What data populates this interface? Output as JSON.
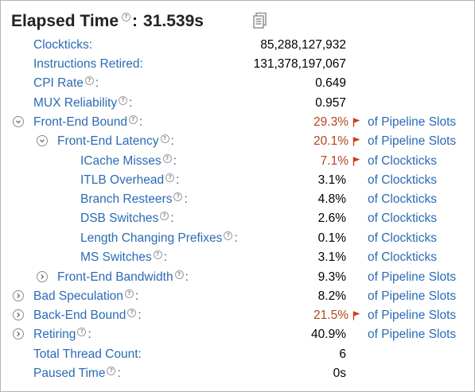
{
  "header": {
    "title": "Elapsed Time",
    "colon": ":",
    "value": "31.539s",
    "help_glyph": "?"
  },
  "metrics": {
    "clockticks": {
      "label": "Clockticks:",
      "value": "85,288,127,932"
    },
    "instructions_retired": {
      "label": "Instructions Retired:",
      "value": "131,378,197,067"
    },
    "cpi_rate": {
      "label": "CPI Rate",
      "value": "0.649"
    },
    "mux_reliability": {
      "label": "MUX Reliability",
      "value": "0.957"
    },
    "front_end_bound": {
      "label": "Front-End Bound",
      "value": "29.3%",
      "unit": "of Pipeline Slots"
    },
    "front_end_latency": {
      "label": "Front-End Latency",
      "value": "20.1%",
      "unit": "of Pipeline Slots"
    },
    "icache_misses": {
      "label": "ICache Misses",
      "value": "7.1%",
      "unit": "of Clockticks"
    },
    "itlb_overhead": {
      "label": "ITLB Overhead",
      "value": "3.1%",
      "unit": "of Clockticks"
    },
    "branch_resteers": {
      "label": "Branch Resteers",
      "value": "4.8%",
      "unit": "of Clockticks"
    },
    "dsb_switches": {
      "label": "DSB Switches",
      "value": "2.6%",
      "unit": "of Clockticks"
    },
    "length_changing_prefixes": {
      "label": "Length Changing Prefixes",
      "value": "0.1%",
      "unit": "of Clockticks"
    },
    "ms_switches": {
      "label": "MS Switches",
      "value": "3.1%",
      "unit": "of Clockticks"
    },
    "front_end_bandwidth": {
      "label": "Front-End Bandwidth",
      "value": "9.3%",
      "unit": "of Pipeline Slots"
    },
    "bad_speculation": {
      "label": "Bad Speculation",
      "value": "8.2%",
      "unit": "of Pipeline Slots"
    },
    "back_end_bound": {
      "label": "Back-End Bound",
      "value": "21.5%",
      "unit": "of Pipeline Slots"
    },
    "retiring": {
      "label": "Retiring",
      "value": "40.9%",
      "unit": "of Pipeline Slots"
    },
    "total_thread_count": {
      "label": "Total Thread Count:",
      "value": "6"
    },
    "paused_time": {
      "label": "Paused Time",
      "value": "0s"
    }
  },
  "colors": {
    "link": "#2b6bb5",
    "warning_value": "#b5441f",
    "flag": "#c8401a"
  },
  "icons": {
    "help": "question-circle-icon",
    "copy": "copy-document-icon",
    "expanded": "chevron-down-circle-icon",
    "collapsed": "chevron-right-circle-icon",
    "warning": "red-flag-icon"
  }
}
